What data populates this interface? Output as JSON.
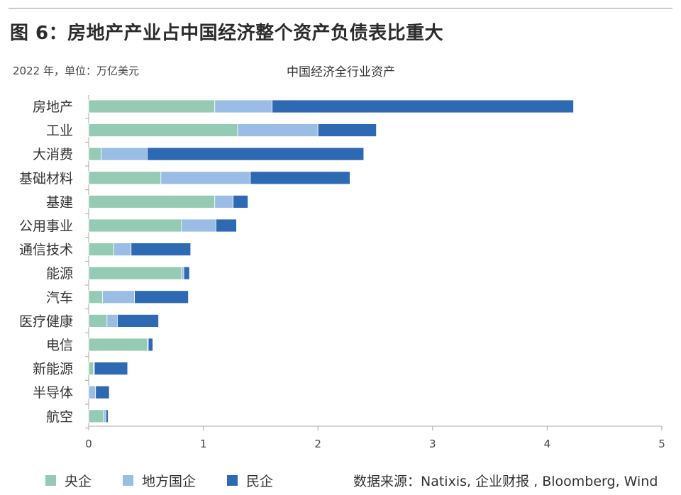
{
  "header": {
    "title": "图 6：房地产产业占中国经济整个资产负债表比重大",
    "unit_note": "2022 年，单位：万亿美元",
    "source": "数据来源：Natixis, 企业财报 , Bloomberg, Wind"
  },
  "colors": {
    "soe_central": "#95cbb5",
    "soe_local": "#99bde4",
    "private": "#2e6ab3",
    "axis": "#aaaaaa"
  },
  "chart_data": {
    "type": "bar",
    "orientation": "horizontal",
    "stacked": true,
    "title": "中国经济全行业资产",
    "xlim": [
      0,
      5
    ],
    "xticks": [
      0,
      1,
      2,
      3,
      4,
      5
    ],
    "grid": false,
    "legend_position": "bottom-left",
    "categories": [
      "房地产",
      "工业",
      "大消费",
      "基础材料",
      "基建",
      "公用事业",
      "通信技术",
      "能源",
      "汽车",
      "医疗健康",
      "电信",
      "新能源",
      "半导体",
      "航空"
    ],
    "series": [
      {
        "name": "央企",
        "values": [
          1.1,
          1.3,
          0.11,
          0.63,
          1.1,
          0.81,
          0.22,
          0.81,
          0.12,
          0.16,
          0.51,
          0.04,
          0.0,
          0.13
        ]
      },
      {
        "name": "地方国企",
        "values": [
          0.5,
          0.7,
          0.4,
          0.78,
          0.16,
          0.3,
          0.15,
          0.02,
          0.28,
          0.09,
          0.01,
          0.01,
          0.06,
          0.02
        ]
      },
      {
        "name": "民企",
        "values": [
          2.63,
          0.51,
          1.89,
          0.87,
          0.13,
          0.18,
          0.52,
          0.05,
          0.47,
          0.36,
          0.04,
          0.29,
          0.12,
          0.02
        ]
      }
    ]
  }
}
